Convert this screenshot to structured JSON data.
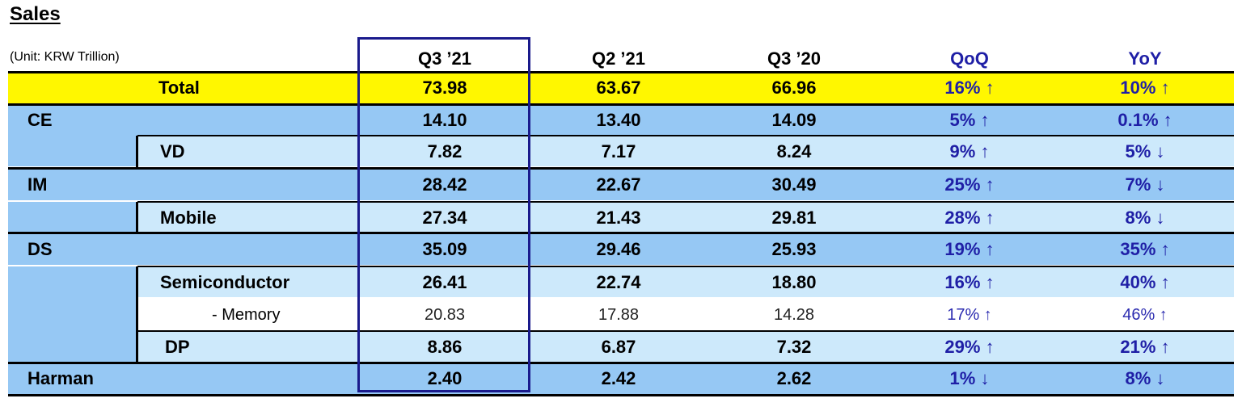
{
  "title": "Sales",
  "unit": "(Unit: KRW Trillion)",
  "columns": [
    "Q3 ’21",
    "Q2 ’21",
    "Q3 ’20",
    "QoQ",
    "YoY"
  ],
  "rows": [
    {
      "label": "Total",
      "values": [
        "73.98",
        "63.67",
        "66.96",
        "16% ↑",
        "10% ↑"
      ]
    },
    {
      "label": "CE",
      "values": [
        "14.10",
        "13.40",
        "14.09",
        "5% ↑",
        "0.1% ↑"
      ]
    },
    {
      "label": "VD",
      "values": [
        "7.82",
        "7.17",
        "8.24",
        "9% ↑",
        "5% ↓"
      ]
    },
    {
      "label": "IM",
      "values": [
        "28.42",
        "22.67",
        "30.49",
        "25% ↑",
        "7% ↓"
      ]
    },
    {
      "label": "Mobile",
      "values": [
        "27.34",
        "21.43",
        "29.81",
        "28% ↑",
        "8% ↓"
      ]
    },
    {
      "label": "DS",
      "values": [
        "35.09",
        "29.46",
        "25.93",
        "19% ↑",
        "35% ↑"
      ]
    },
    {
      "label": "Semiconductor",
      "values": [
        "26.41",
        "22.74",
        "18.80",
        "16% ↑",
        "40% ↑"
      ]
    },
    {
      "label": "- Memory",
      "values": [
        "20.83",
        "17.88",
        "14.28",
        "17% ↑",
        "46% ↑"
      ]
    },
    {
      "label": "DP",
      "values": [
        "8.86",
        "6.87",
        "7.32",
        "29% ↑",
        "21% ↑"
      ]
    },
    {
      "label": "Harman",
      "values": [
        "2.40",
        "2.42",
        "2.62",
        "1% ↓",
        "8% ↓"
      ]
    }
  ],
  "colors": {
    "total_row": "#fff700",
    "segment_row": "#96c8f4",
    "subsegment_row": "#cde9fb",
    "percent_text": "#1f1fa6",
    "highlight_border": "#1a1a8c"
  }
}
